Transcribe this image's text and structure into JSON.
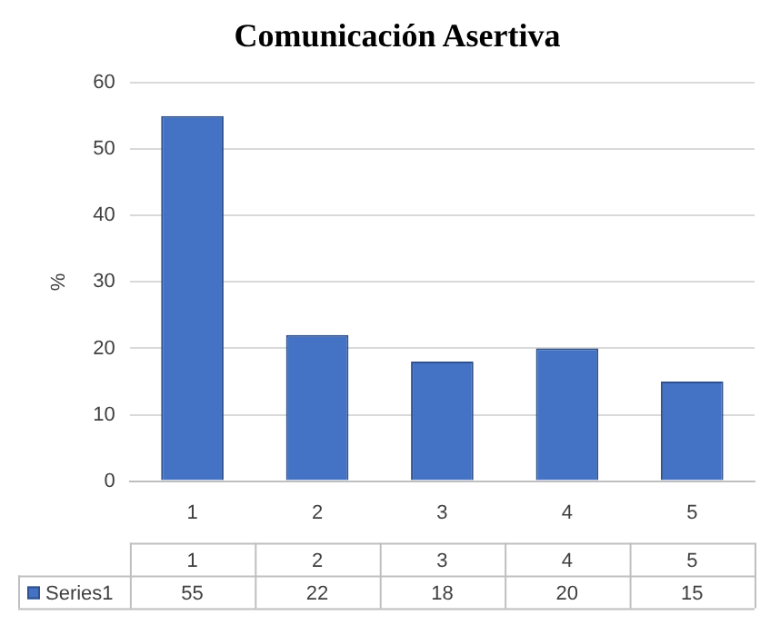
{
  "chart_data": {
    "type": "bar",
    "title": "Comunicación Asertiva",
    "ylabel": "%",
    "categories": [
      "1",
      "2",
      "3",
      "4",
      "5"
    ],
    "series": [
      {
        "name": "Series1",
        "color": "#4472c4",
        "values": [
          55,
          22,
          18,
          20,
          15
        ]
      }
    ],
    "ylim": [
      0,
      60
    ],
    "yticks": [
      0,
      10,
      20,
      30,
      40,
      50,
      60
    ],
    "grid": "y",
    "data_labels": true
  }
}
